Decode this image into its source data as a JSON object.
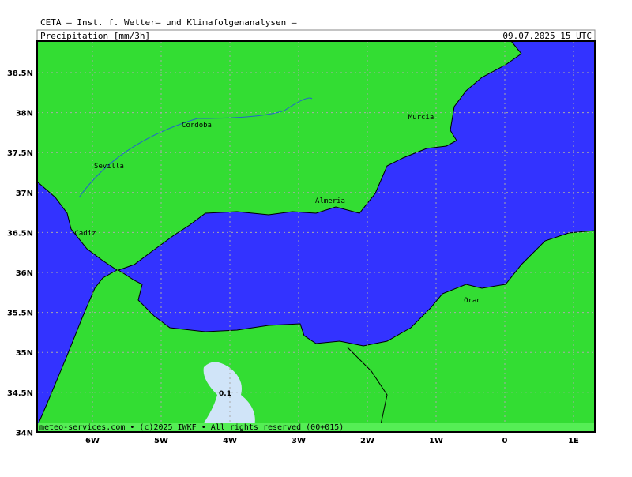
{
  "header": {
    "source": "CETA — Inst. f. Wetter— und Klimafolgenanalysen —",
    "product": "Precipitation [mm/3h]",
    "valid": "09.07.2025 15 UTC"
  },
  "map": {
    "lat_labels": [
      "38.5N",
      "38N",
      "37.5N",
      "37N",
      "36.5N",
      "36N",
      "35.5N",
      "35N",
      "34.5N",
      "34N"
    ],
    "lon_labels": [
      "6W",
      "5W",
      "4W",
      "3W",
      "2W",
      "1W",
      "0",
      "1E"
    ],
    "places": [
      "Murcia",
      "Cordoba",
      "Sevilla",
      "Almeria",
      "Cadiz",
      "Oran"
    ],
    "contour_label": "0.1",
    "footer": "meteo-services.com • (c)2025 IWKF • All rights reserved (00+015)"
  }
}
